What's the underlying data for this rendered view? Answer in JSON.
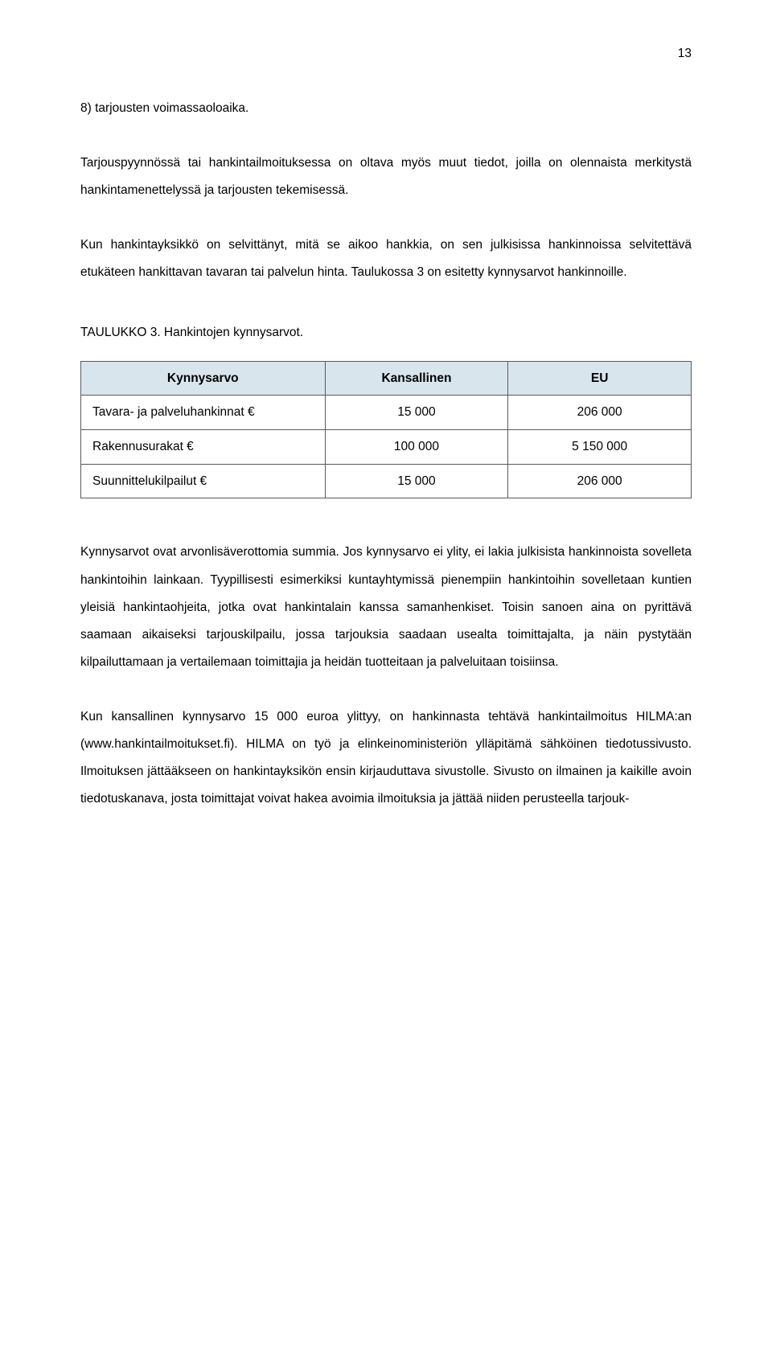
{
  "page_number": "13",
  "paragraphs": {
    "p1": "8) tarjousten voimassaoloaika.",
    "p2": "Tarjouspyynnössä tai hankintailmoituksessa on oltava myös muut tiedot, joilla on olennaista merkitystä hankintamenettelyssä ja tarjousten tekemisessä.",
    "p3": "Kun hankintayksikkö on selvittänyt, mitä se aikoo hankkia, on sen julkisissa hankinnoissa selvitettävä etukäteen hankittavan tavaran tai palvelun hinta. Taulukossa 3 on esitetty kynnysarvot hankinnoille.",
    "p4": "Kynnysarvot ovat arvonlisäverottomia summia. Jos kynnysarvo ei ylity, ei lakia julkisista hankinnoista sovelleta hankintoihin lainkaan. Tyypillisesti esimerkiksi kuntayhtymissä pienempiin hankintoihin sovelletaan kuntien yleisiä hankintaohjeita, jotka ovat hankintalain kanssa samanhenkiset. Toisin sanoen aina on pyrittävä saamaan aikaiseksi tarjouskilpailu, jossa tarjouksia saadaan usealta toimittajalta, ja näin pystytään kilpailuttamaan ja vertailemaan toimittajia ja heidän tuotteitaan ja palveluitaan toisiinsa.",
    "p5": "Kun kansallinen kynnysarvo 15 000 euroa ylittyy, on hankinnasta tehtävä hankintailmoitus HILMA:an (www.hankintailmoitukset.fi). HILMA on työ ja elinkeinoministeriön ylläpitämä sähköinen tiedotussivusto. Ilmoituksen jättääkseen on hankintayksikön ensin kirjauduttava sivustolle. Sivusto on ilmainen ja kaikille avoin tiedotuskanava, josta toimittajat voivat hakea avoimia ilmoituksia ja jättää niiden perusteella tarjouk-"
  },
  "table": {
    "caption": "TAULUKKO 3. Hankintojen kynnysarvot.",
    "header_bg": "#d8e5ed",
    "columns": [
      "Kynnysarvo",
      "Kansallinen",
      "EU"
    ],
    "rows": [
      [
        "Tavara- ja palveluhankinnat €",
        "15 000",
        "206 000"
      ],
      [
        "Rakennusurakat €",
        "100 000",
        "5 150 000"
      ],
      [
        "Suunnittelukilpailut €",
        "15 000",
        "206 000"
      ]
    ]
  }
}
